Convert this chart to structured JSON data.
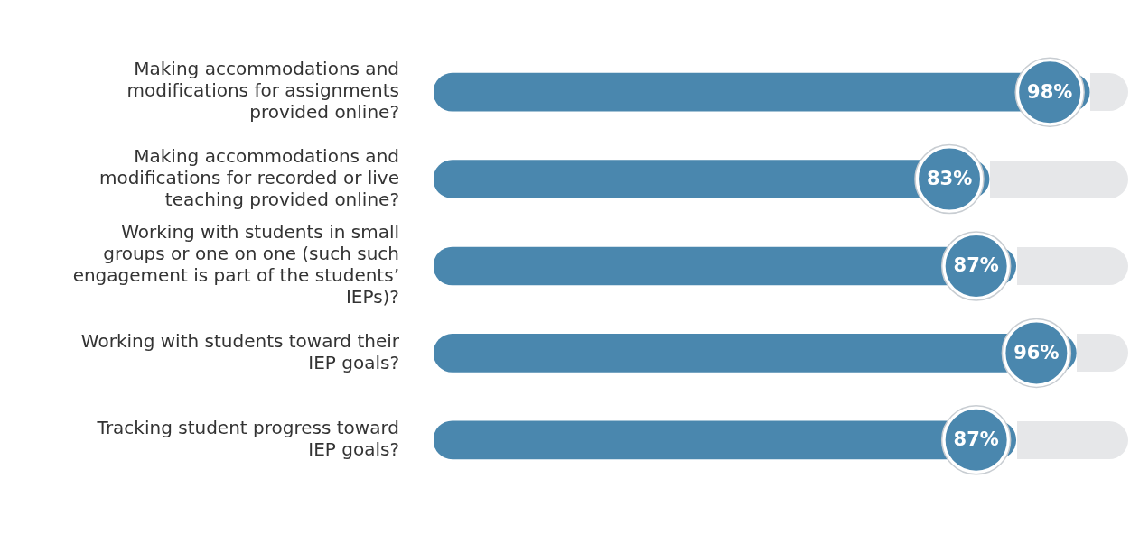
{
  "chart_data": {
    "type": "bar",
    "orientation": "horizontal",
    "categories": [
      "Making accommodations and modifications for assignments provided online?",
      "Making accommodations and modifications for recorded or live teaching provided online?",
      "Working with students in small groups or one on one (such such engagement is part of the students’ IEPs)?",
      "Working with students toward their IEP goals?",
      "Tracking student progress toward IEP goals?"
    ],
    "values": [
      98,
      83,
      87,
      96,
      87
    ],
    "value_labels": [
      "98%",
      "83%",
      "87%",
      "96%",
      "87%"
    ],
    "color": "#4a87ae",
    "tick_labels": "y"
  }
}
